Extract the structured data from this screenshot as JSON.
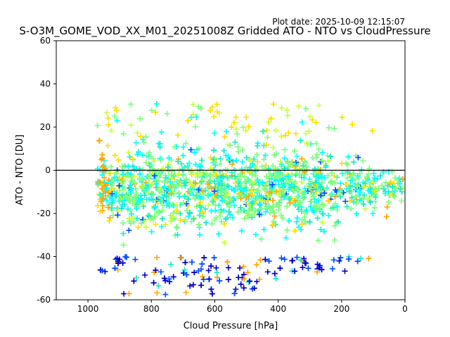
{
  "plot_date": "Plot date: 2025-10-09 12:15:07",
  "chart_data": {
    "type": "scatter",
    "title": "S-O3M_GOME_VOD_XX_M01_20251008Z Gridded ATO - NTO vs CloudPressure",
    "xlabel": "Cloud Pressure [hPa]",
    "ylabel": "ATO - NTO [DU]",
    "xlim": [
      1100,
      0
    ],
    "ylim": [
      -60,
      60
    ],
    "xticks": [
      1000,
      800,
      600,
      400,
      200,
      0
    ],
    "yticks": [
      -60,
      -40,
      -20,
      0,
      20,
      40,
      60
    ],
    "reference_line_y": 0,
    "marker": "+",
    "grid": false,
    "colors": {
      "dark_blue": "#0000cc",
      "blue": "#0050ff",
      "cyan": "#00ffff",
      "teal": "#1ee8c8",
      "light_green": "#7cff7c",
      "yellow_green": "#c8ff3c",
      "yellow": "#ffdd00",
      "orange": "#ffa500"
    },
    "point_cloud": {
      "x_range": [
        20,
        980
      ],
      "y_core_range": [
        -35,
        20
      ],
      "y_outlier_range": [
        -58,
        40
      ],
      "count_estimate": 2500,
      "series": [
        {
          "name": "dark-blue points",
          "color": "#0000cc"
        },
        {
          "name": "blue points",
          "color": "#0050ff"
        },
        {
          "name": "cyan points",
          "color": "#00ffff"
        },
        {
          "name": "green points",
          "color": "#7cff7c"
        },
        {
          "name": "yellow points",
          "color": "#ffdd00"
        },
        {
          "name": "orange points",
          "color": "#ffa500"
        }
      ]
    }
  }
}
